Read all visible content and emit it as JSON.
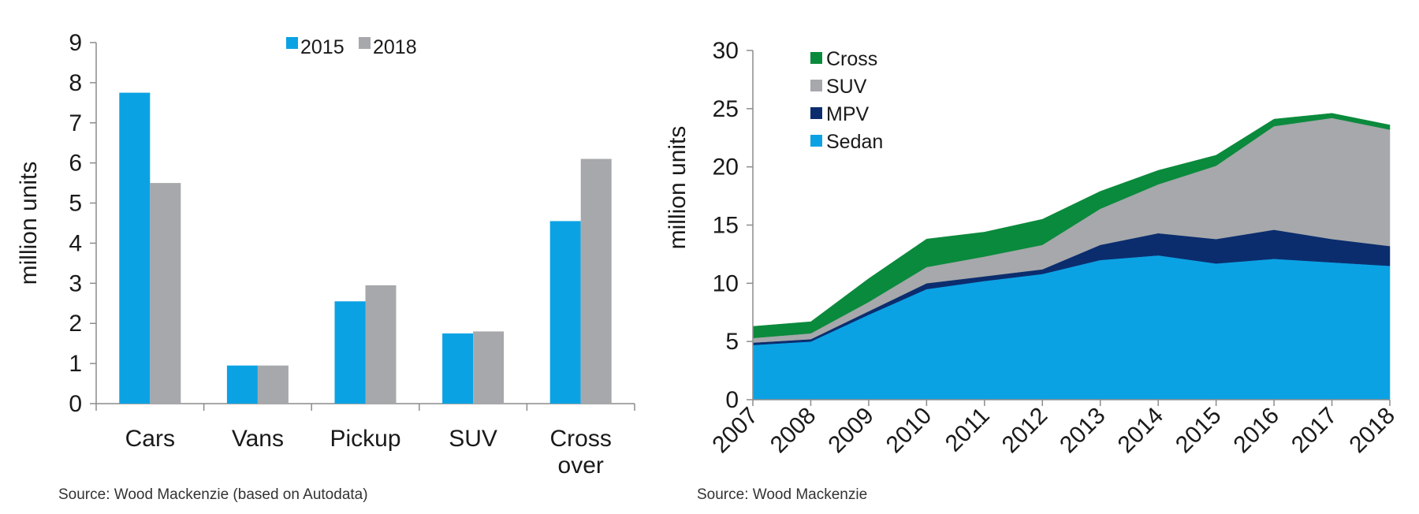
{
  "chart_data": [
    {
      "type": "bar",
      "title": "",
      "xlabel": "",
      "ylabel": "million units",
      "ylim": [
        0,
        9
      ],
      "yticks": [
        0,
        1,
        2,
        3,
        4,
        5,
        6,
        7,
        8,
        9
      ],
      "categories": [
        "Cars",
        "Vans",
        "Pickup",
        "SUV",
        "Cross over"
      ],
      "category_lines": [
        [
          "Cars"
        ],
        [
          "Vans"
        ],
        [
          "Pickup"
        ],
        [
          "SUV"
        ],
        [
          "Cross",
          "over"
        ]
      ],
      "series": [
        {
          "name": "2015",
          "color": "#0ba2e4",
          "values": [
            7.75,
            0.95,
            2.55,
            1.75,
            4.55
          ]
        },
        {
          "name": "2018",
          "color": "#a6a8ab",
          "values": [
            5.5,
            0.95,
            2.95,
            1.8,
            6.1
          ]
        }
      ],
      "legend": "top-center",
      "source": "Source: Wood Mackenzie (based on Autodata)"
    },
    {
      "type": "area",
      "stacked": true,
      "title": "",
      "xlabel": "",
      "ylabel": "million units",
      "ylim": [
        0,
        30
      ],
      "yticks": [
        0,
        5,
        10,
        15,
        20,
        25,
        30
      ],
      "x": [
        "2007",
        "2008",
        "2009",
        "2010",
        "2011",
        "2012",
        "2013",
        "2014",
        "2015",
        "2016",
        "2017",
        "2018"
      ],
      "series": [
        {
          "name": "Sedan",
          "color": "#0ba2e4",
          "values": [
            4.7,
            5.0,
            7.3,
            9.5,
            10.2,
            10.8,
            12.0,
            12.4,
            11.7,
            12.1,
            11.8,
            11.5
          ]
        },
        {
          "name": "MPV",
          "color": "#0b2d6e",
          "values": [
            0.2,
            0.2,
            0.3,
            0.5,
            0.4,
            0.4,
            1.3,
            1.9,
            2.1,
            2.5,
            2.0,
            1.7
          ]
        },
        {
          "name": "SUV",
          "color": "#a6a8ab",
          "values": [
            0.4,
            0.5,
            0.8,
            1.4,
            1.7,
            2.1,
            3.1,
            4.2,
            6.3,
            8.9,
            10.4,
            10.0
          ]
        },
        {
          "name": "Cross",
          "color": "#0a8a3c",
          "values": [
            1.0,
            1.0,
            2.0,
            2.4,
            2.1,
            2.2,
            1.5,
            1.2,
            0.9,
            0.6,
            0.4,
            0.4
          ]
        }
      ],
      "legend_order": [
        "Cross",
        "SUV",
        "MPV",
        "Sedan"
      ],
      "legend": "top-left",
      "source": "Source: Wood Mackenzie"
    }
  ]
}
